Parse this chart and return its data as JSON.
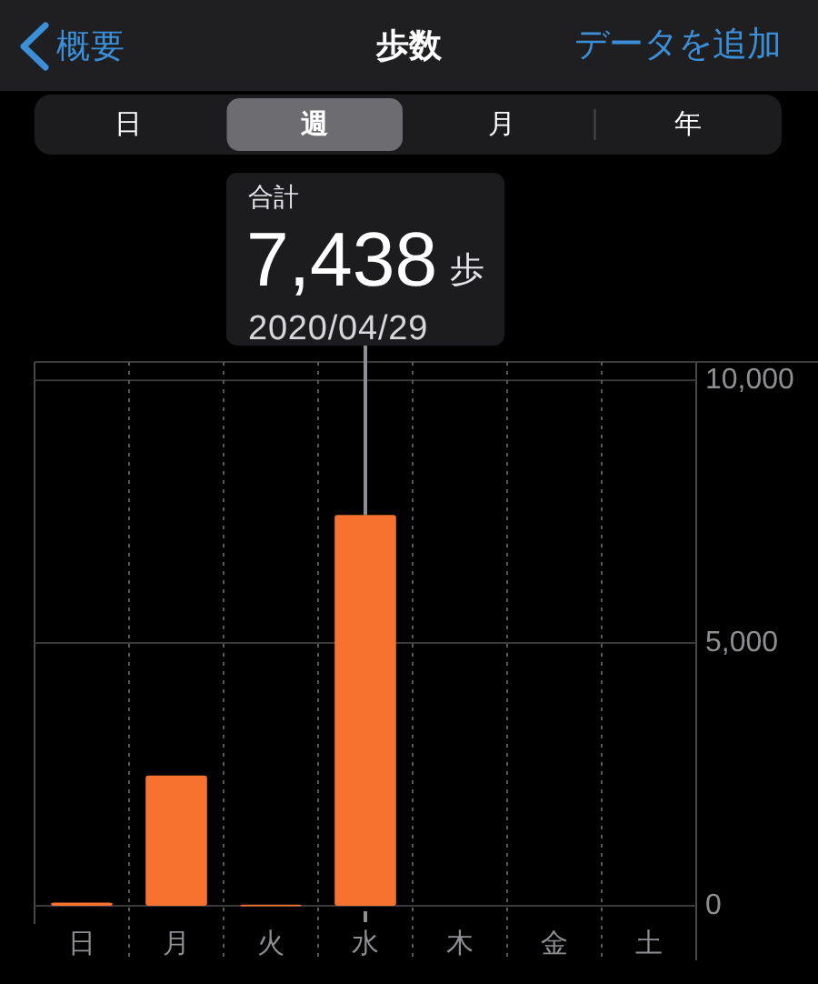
{
  "chart_data": {
    "type": "bar",
    "title": "歩数",
    "categories": [
      "日",
      "月",
      "火",
      "水",
      "木",
      "金",
      "土"
    ],
    "values": [
      60,
      2480,
      20,
      7438,
      null,
      null,
      null
    ],
    "color": "#f6722e",
    "ylim": [
      0,
      10350
    ],
    "yticks": [
      0,
      {
        "value": 5000,
        "label": "5,000"
      },
      {
        "value": 10000,
        "label": "10,000"
      }
    ],
    "grid": true,
    "annotations": [
      "概要",
      "データを追加",
      "日",
      "週",
      "月",
      "年",
      "合計",
      {
        "text": "7,438",
        "x": "水",
        "y": 7438
      },
      "歩",
      {
        "text": "2020/04/29",
        "x": "水",
        "y": 7438
      }
    ]
  }
}
